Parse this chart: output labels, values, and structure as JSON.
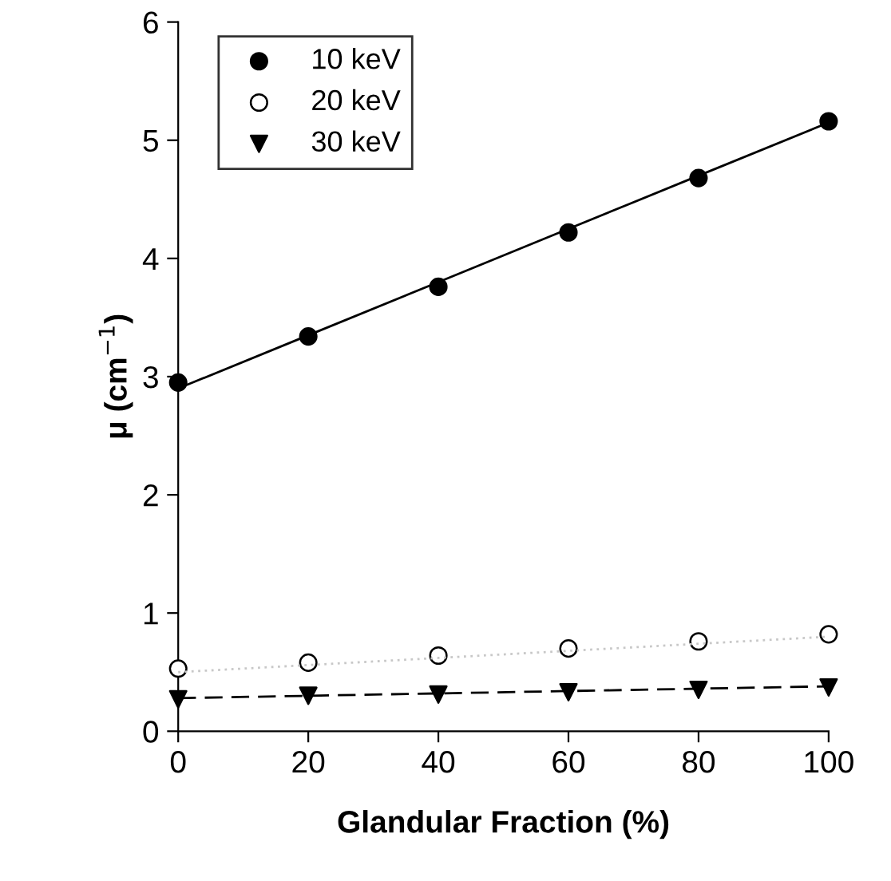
{
  "chart_data": {
    "type": "scatter",
    "xlabel": "Glandular Fraction (%)",
    "ylabel": "μ (cm$^{−1}$)",
    "x": [
      0,
      20,
      40,
      60,
      80,
      100
    ],
    "series": [
      {
        "name": "10 keV",
        "color": "#000000",
        "marker": "circle",
        "values": [
          2.95,
          3.34,
          3.76,
          4.22,
          4.68,
          5.16
        ]
      },
      {
        "name": "20 keV",
        "color": "#ffffff",
        "marker": "circle",
        "values": [
          0.53,
          0.58,
          0.64,
          0.7,
          0.76,
          0.82
        ]
      },
      {
        "name": "30 keV",
        "color": "#000000",
        "marker": "triangle",
        "values": [
          0.27,
          0.3,
          0.31,
          0.33,
          0.35,
          0.37
        ]
      },
      {
        "type": "line",
        "color": "#000000",
        "line_style": "solid",
        "values": [
          2.9,
          3.35,
          3.8,
          4.25,
          4.7,
          5.15
        ]
      },
      {
        "type": "line",
        "color": "#c8c8c8",
        "line_style": "dotted",
        "values": [
          0.5,
          0.56,
          0.62,
          0.68,
          0.74,
          0.8
        ]
      },
      {
        "type": "line",
        "color": "#000000",
        "line_style": "dashed",
        "values": [
          0.28,
          0.3,
          0.32,
          0.34,
          0.36,
          0.38
        ]
      }
    ],
    "xlim": [
      0,
      100
    ],
    "ylim": [
      0,
      6
    ],
    "xticks": [
      0,
      20,
      40,
      60,
      80,
      100
    ],
    "yticks": [
      0,
      1,
      2,
      3,
      4,
      5,
      6
    ],
    "grid": false,
    "legend": "top left"
  }
}
